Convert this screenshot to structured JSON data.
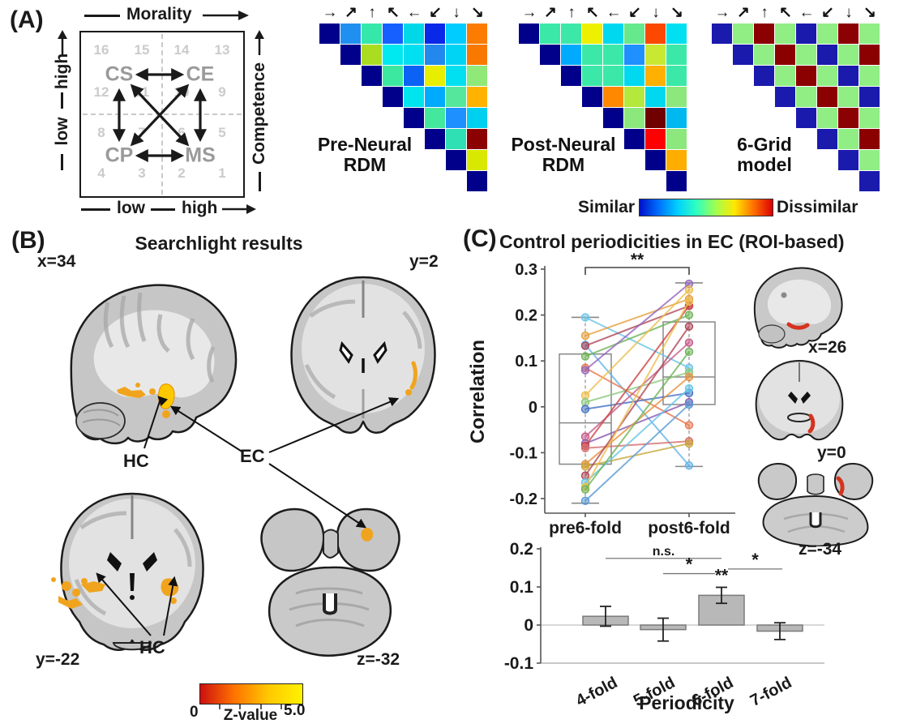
{
  "panelA": {
    "label": "(A)",
    "schematic": {
      "top_axis": "Morality",
      "right_axis": "Competence",
      "left_top": "high",
      "left_bottom": "low",
      "bottom_left": "low",
      "bottom_right": "high",
      "quadrants": {
        "tl": "CS",
        "tr": "CE",
        "bl": "CP",
        "br": "MS"
      },
      "grid_numbers": [
        "16",
        "15",
        "14",
        "13",
        "12",
        "11",
        "10",
        "9",
        "8",
        "7",
        "6",
        "5",
        "4",
        "3",
        "2",
        "1"
      ]
    },
    "direction_arrows": [
      "→",
      "↗",
      "↑",
      "↖",
      "←",
      "↙",
      "↓",
      "↘"
    ],
    "rdms": [
      {
        "name": "pre-neural-rdm",
        "label_lines": [
          "Pre-Neural",
          "RDM"
        ],
        "rows": [
          [
            "#00008b",
            "#2090f0",
            "#35e8aa",
            "#1560ff",
            "#00d8e8",
            "#0928e8",
            "#00ccff",
            "#fb7c00"
          ],
          [
            "#00008b",
            "#aadd22",
            "#00e8f0",
            "#00e0f0",
            "#2288ee",
            "#00d4f4",
            "#f87800"
          ],
          [
            "#00008b",
            "#3ce8a0",
            "#0b62f5",
            "#e8ee00",
            "#00e0f0",
            "#90e878"
          ],
          [
            "#00008b",
            "#00e4ee",
            "#00aaff",
            "#55e89c",
            "#ffb300"
          ],
          [
            "#00008b",
            "#44e89c",
            "#1e90ff",
            "#00d0f0"
          ],
          [
            "#00008b",
            "#2ee0b4",
            "#8b0000"
          ],
          [
            "#00008b",
            "#d8e800"
          ],
          [
            "#00008b"
          ]
        ]
      },
      {
        "name": "post-neural-rdm",
        "label_lines": [
          "Post-Neural",
          "RDM"
        ],
        "rows": [
          [
            "#00008b",
            "#3ce8a8",
            "#3ce8a8",
            "#eef000",
            "#00d8f0",
            "#66e88c",
            "#fc4800",
            "#00e0f0"
          ],
          [
            "#00008b",
            "#00aaff",
            "#3ce8a8",
            "#3ce8a8",
            "#1e90ff",
            "#c8e832",
            "#3ce8a8"
          ],
          [
            "#00008b",
            "#3ce8a8",
            "#3ce8a8",
            "#00d8f0",
            "#ffb000",
            "#3ce8a8"
          ],
          [
            "#00008b",
            "#ff8800",
            "#b4e83c",
            "#00d8f0",
            "#8ce87c"
          ],
          [
            "#00008b",
            "#8ce87c",
            "#700000",
            "#00b8f0"
          ],
          [
            "#00008b",
            "#ff0000",
            "#8ce87c"
          ],
          [
            "#00008b",
            "#ffad00"
          ],
          [
            "#00008b"
          ]
        ]
      },
      {
        "name": "six-grid-model",
        "label_lines": [
          "6-Grid",
          "model"
        ],
        "rows": [
          [
            "#1a1aad",
            "#90ee85",
            "#8b0000",
            "#90ee85",
            "#1a1aad",
            "#90ee85",
            "#8b0000",
            "#90ee85"
          ],
          [
            "#1a1aad",
            "#90ee85",
            "#8b0000",
            "#90ee85",
            "#1a1aad",
            "#90ee85",
            "#8b0000"
          ],
          [
            "#1a1aad",
            "#90ee85",
            "#8b0000",
            "#90ee85",
            "#1a1aad",
            "#90ee85"
          ],
          [
            "#1a1aad",
            "#90ee85",
            "#8b0000",
            "#90ee85",
            "#1a1aad"
          ],
          [
            "#1a1aad",
            "#90ee85",
            "#8b0000",
            "#90ee85"
          ],
          [
            "#1a1aad",
            "#90ee85",
            "#8b0000"
          ],
          [
            "#1a1aad",
            "#90ee85"
          ],
          [
            "#1a1aad"
          ]
        ]
      }
    ],
    "colorbar": {
      "left": "Similar",
      "right": "Dissimilar",
      "stops": [
        "#0010c8",
        "#0070ff",
        "#00d0ff",
        "#30ffc0",
        "#a0ff50",
        "#ffe800",
        "#ff7000",
        "#dd0000"
      ]
    }
  },
  "panelB": {
    "label": "(B)",
    "title": "Searchlight results",
    "slice_labels": {
      "sagittal": "x=34",
      "coronal_top": "y=2",
      "coronal_bottom": "y=-22",
      "axial": "z=-32"
    },
    "annotations": {
      "hc_top": "HC",
      "ec": "EC",
      "hc_bottom": "HC"
    },
    "colorbar": {
      "min": "0",
      "label": "Z-value",
      "max": "5.0",
      "stops": [
        "#cc1010",
        "#ff7300",
        "#ffc800",
        "#fff200"
      ]
    }
  },
  "panelC": {
    "label": "(C)",
    "title": "Control periodicities in EC (ROI-based)",
    "slice_labels": {
      "sagittal": "x=26",
      "coronal": "y=0",
      "axial": "z=-34"
    }
  },
  "chart_data": [
    {
      "type": "line",
      "title": "Control periodicities in EC (ROI-based)",
      "ylabel": "Correlation",
      "ylim": [
        -0.25,
        0.32
      ],
      "yticks": [
        0.3,
        0.2,
        0.1,
        0,
        -0.1,
        -0.2
      ],
      "categories": [
        "pre6-fold",
        "post6-fold"
      ],
      "significance": "**",
      "boxes": [
        {
          "category": "pre6-fold",
          "q1": -0.125,
          "median": -0.035,
          "q3": 0.115,
          "whisker_low": -0.21,
          "whisker_high": 0.195
        },
        {
          "category": "post6-fold",
          "q1": 0.005,
          "median": 0.065,
          "q3": 0.185,
          "whisker_low": -0.13,
          "whisker_high": 0.27
        }
      ],
      "series": [
        {
          "pre": 0.195,
          "post": 0.085,
          "color": "#6ec6e8"
        },
        {
          "pre": 0.155,
          "post": 0.235,
          "color": "#e8a13f"
        },
        {
          "pre": 0.135,
          "post": -0.128,
          "color": "#64b5e8"
        },
        {
          "pre": 0.133,
          "post": 0.22,
          "color": "#b04a5a"
        },
        {
          "pre": 0.11,
          "post": 0.2,
          "color": "#6fb55a"
        },
        {
          "pre": 0.085,
          "post": -0.04,
          "color": "#e87850"
        },
        {
          "pre": 0.08,
          "post": 0.268,
          "color": "#9467bd"
        },
        {
          "pre": 0.025,
          "post": 0.255,
          "color": "#edbf4e"
        },
        {
          "pre": 0.01,
          "post": 0.075,
          "color": "#8cc87c"
        },
        {
          "pre": -0.005,
          "post": 0.03,
          "color": "#4472c4"
        },
        {
          "pre": -0.065,
          "post": 0.14,
          "color": "#c65b8a"
        },
        {
          "pre": -0.08,
          "post": 0.01,
          "color": "#8a5bb0"
        },
        {
          "pre": -0.085,
          "post": 0.22,
          "color": "#cc4444"
        },
        {
          "pre": -0.09,
          "post": -0.075,
          "color": "#d96f6f"
        },
        {
          "pre": -0.125,
          "post": 0.065,
          "color": "#e8923f"
        },
        {
          "pre": -0.13,
          "post": -0.08,
          "color": "#c8a83c"
        },
        {
          "pre": -0.15,
          "post": 0.175,
          "color": "#b04a5a"
        },
        {
          "pre": -0.165,
          "post": 0.04,
          "color": "#64c5e8"
        },
        {
          "pre": -0.175,
          "post": 0.23,
          "color": "#edbf4e"
        },
        {
          "pre": -0.18,
          "post": 0.12,
          "color": "#6fb55a"
        },
        {
          "pre": -0.205,
          "post": 0.005,
          "color": "#5b9bd5"
        }
      ]
    },
    {
      "type": "bar",
      "categories": [
        "4-fold",
        "5-fold",
        "6-fold",
        "7-fold"
      ],
      "values": [
        0.023,
        -0.012,
        0.078,
        -0.016
      ],
      "errors": [
        0.026,
        0.03,
        0.021,
        0.022
      ],
      "xlabel": "Periodicity",
      "ylim": [
        -0.1,
        0.2
      ],
      "yticks": [
        0.2,
        0.1,
        0,
        -0.1
      ],
      "bar_color": "#b8b8b8",
      "bar_border": "#7a7a7a",
      "top_label": "**",
      "brackets": [
        {
          "from": 0,
          "to": 2,
          "label": "n.s.",
          "y": 0.175
        },
        {
          "from": 1,
          "to": 2,
          "label": "*",
          "y": 0.135
        },
        {
          "from": 2,
          "to": 3,
          "label": "*",
          "y": 0.147
        }
      ]
    }
  ]
}
